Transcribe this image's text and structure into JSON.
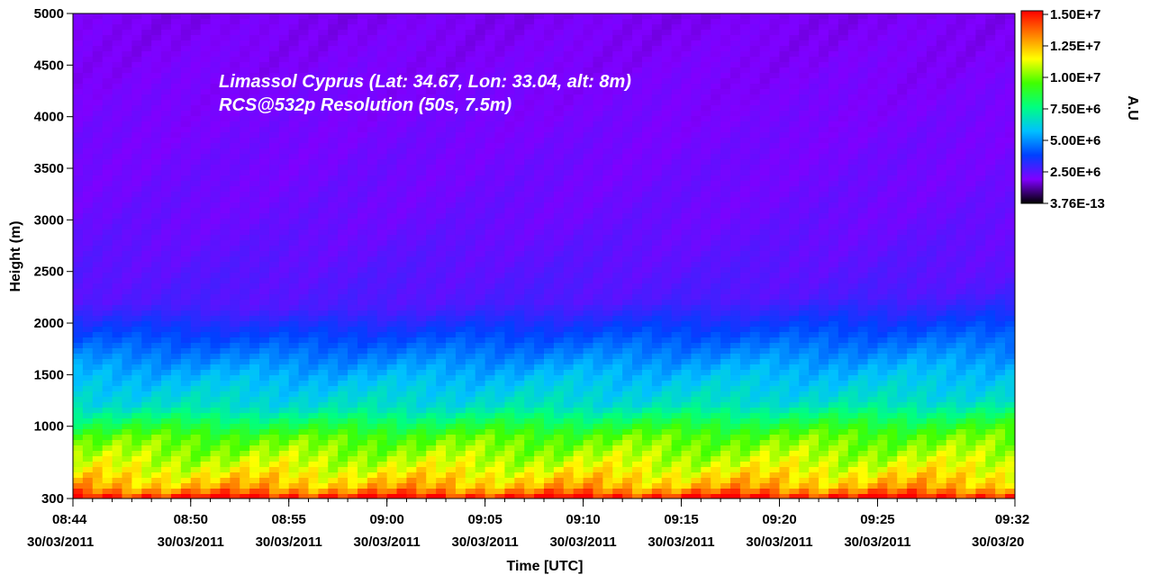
{
  "chart_data": {
    "type": "heatmap",
    "title": "Limassol Cyprus (Lat: 34.67, Lon: 33.04, alt: 8m)",
    "subtitle": "RCS@532p Resolution (50s, 7.5m)",
    "xlabel": "Time [UTC]",
    "ylabel": "Height (m)",
    "xlim": [
      "08:44",
      "09:32"
    ],
    "ylim": [
      300,
      5000
    ],
    "x_ticks": [
      {
        "time": "08:44",
        "date": "30/03/2011",
        "minutes": 0
      },
      {
        "time": "08:50",
        "date": "30/03/2011",
        "minutes": 6
      },
      {
        "time": "08:55",
        "date": "30/03/2011",
        "minutes": 11
      },
      {
        "time": "09:00",
        "date": "30/03/2011",
        "minutes": 16
      },
      {
        "time": "09:05",
        "date": "30/03/2011",
        "minutes": 21
      },
      {
        "time": "09:10",
        "date": "30/03/2011",
        "minutes": 26
      },
      {
        "time": "09:15",
        "date": "30/03/2011",
        "minutes": 31
      },
      {
        "time": "09:20",
        "date": "30/03/2011",
        "minutes": 36
      },
      {
        "time": "09:25",
        "date": "30/03/2011",
        "minutes": 41
      },
      {
        "time": "09:32",
        "date": "30/03/20",
        "minutes": 48
      }
    ],
    "y_ticks": [
      "300",
      "1000",
      "1500",
      "2000",
      "2500",
      "3000",
      "3500",
      "4000",
      "4500",
      "5000"
    ],
    "colorbar": {
      "label": "A.U",
      "min": 3.76e-13,
      "max": 15000000,
      "ticks": [
        "1.50E+7",
        "1.25E+7",
        "1.00E+7",
        "7.50E+6",
        "5.00E+6",
        "2.50E+6",
        "3.76E-13"
      ],
      "tick_values": [
        15000000,
        12500000,
        10000000,
        7500000,
        5000000,
        2500000,
        3.76e-13
      ],
      "colors": [
        "#000000",
        "#8000ff",
        "#0040ff",
        "#00c0ff",
        "#00ff80",
        "#40ff00",
        "#ffff00",
        "#ff8000",
        "#ff0000"
      ]
    },
    "layers": [
      {
        "height_m": 300,
        "value": 15000000
      },
      {
        "height_m": 400,
        "value": 12500000
      },
      {
        "height_m": 600,
        "value": 11000000
      },
      {
        "height_m": 900,
        "value": 9500000
      },
      {
        "height_m": 1200,
        "value": 6500000
      },
      {
        "height_m": 1500,
        "value": 5500000
      },
      {
        "height_m": 1900,
        "value": 3800000
      },
      {
        "height_m": 2200,
        "value": 2600000
      },
      {
        "height_m": 3000,
        "value": 2200000
      },
      {
        "height_m": 5000,
        "value": 1800000
      }
    ],
    "boundary_layer_top_m": [
      {
        "minutes": 0,
        "height_m": 2000
      },
      {
        "minutes": 12,
        "height_m": 1950
      },
      {
        "minutes": 24,
        "height_m": 2000
      },
      {
        "minutes": 36,
        "height_m": 2050
      },
      {
        "minutes": 48,
        "height_m": 2100
      }
    ]
  }
}
